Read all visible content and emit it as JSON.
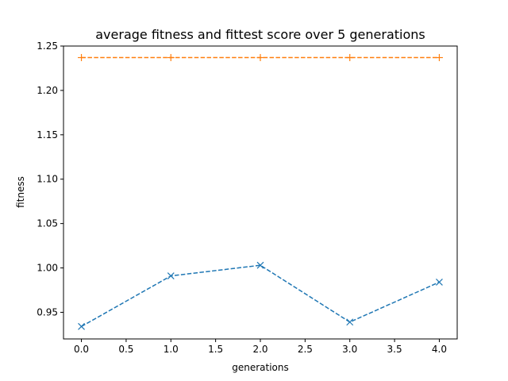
{
  "chart_data": {
    "type": "line",
    "title": "average fitness and fittest score over 5 generations",
    "xlabel": "generations",
    "ylabel": "fitness",
    "xlim": [
      -0.2,
      4.2
    ],
    "ylim": [
      0.92,
      1.25
    ],
    "x_ticks": [
      0.0,
      0.5,
      1.0,
      1.5,
      2.0,
      2.5,
      3.0,
      3.5,
      4.0
    ],
    "x_tick_labels": [
      "0.0",
      "0.5",
      "1.0",
      "1.5",
      "2.0",
      "2.5",
      "3.0",
      "3.5",
      "4.0"
    ],
    "y_ticks": [
      0.95,
      1.0,
      1.05,
      1.1,
      1.15,
      1.2,
      1.25
    ],
    "y_tick_labels": [
      "0.95",
      "1.00",
      "1.05",
      "1.10",
      "1.15",
      "1.20",
      "1.25"
    ],
    "x": [
      0,
      1,
      2,
      3,
      4
    ],
    "grid": false,
    "series": [
      {
        "values": [
          0.934,
          0.991,
          1.003,
          0.939,
          0.984
        ],
        "color": "#1f77b4",
        "linestyle": "dashed",
        "marker": "x"
      },
      {
        "values": [
          1.237,
          1.237,
          1.237,
          1.237,
          1.237
        ],
        "color": "#ff7f0e",
        "linestyle": "dashed",
        "marker": "+"
      }
    ]
  }
}
